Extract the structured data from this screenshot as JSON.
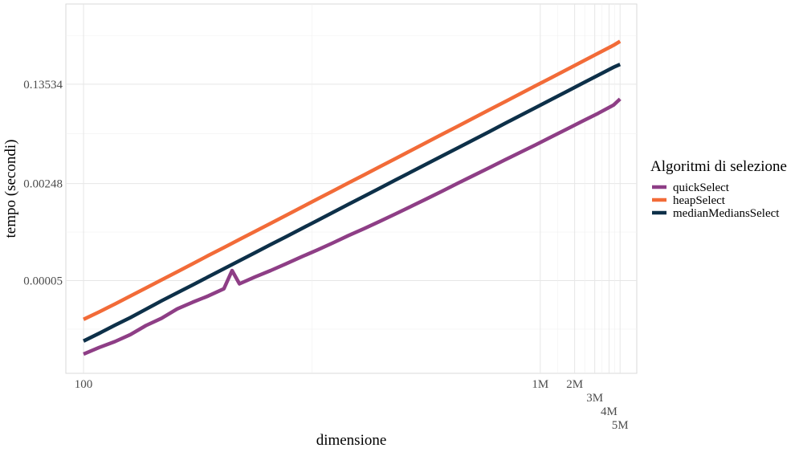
{
  "chart_data": {
    "type": "line",
    "title": "",
    "xlabel": "dimensione",
    "ylabel": "tempo (secondi)",
    "x_scale": "log",
    "y_scale": "log",
    "x_ticks": [
      {
        "value": 100,
        "label": "100"
      },
      {
        "value": 1000000,
        "label": "1M"
      },
      {
        "value": 2000000,
        "label": "2M"
      },
      {
        "value": 3000000,
        "label": "3M"
      },
      {
        "value": 4000000,
        "label": "4M"
      },
      {
        "value": 5000000,
        "label": "5M"
      }
    ],
    "y_ticks": [
      {
        "value": 5e-05,
        "label": "0.00005"
      },
      {
        "value": 0.00248,
        "label": "0.00248"
      },
      {
        "value": 0.13534,
        "label": "0.13534"
      }
    ],
    "xlim": [
      70,
      7000000
    ],
    "ylim": [
      1.2e-06,
      3.4
    ],
    "grid": true,
    "legend": {
      "title": "Algoritmi di selezione",
      "position": "right"
    },
    "series": [
      {
        "name": "quickSelect",
        "color": "#8e3e86",
        "x": [
          100,
          137,
          188,
          257,
          352,
          482,
          660,
          904,
          1238,
          1695,
          2000,
          2321,
          3178,
          4352,
          5960,
          8162,
          11178,
          15307,
          20962,
          28707,
          39313,
          53837,
          73727,
          100966,
          138268,
          189351,
          259308,
          355108,
          486301,
          665962,
          911998,
          1248947,
          1710377,
          2342280,
          3207645,
          4392701,
          5000000
        ],
        "y": [
          2.6e-06,
          3.4e-06,
          4.3e-06,
          5.7e-06,
          8.2e-06,
          1.1e-05,
          1.6e-05,
          2.1e-05,
          2.7e-05,
          3.6e-05,
          7.5e-05,
          4.4e-05,
          5.8e-05,
          7.5e-05,
          9.9e-05,
          0.000131,
          0.000172,
          0.000228,
          0.000307,
          0.000406,
          0.000542,
          0.000731,
          0.000989,
          0.00134,
          0.00183,
          0.00252,
          0.00342,
          0.00466,
          0.00637,
          0.00867,
          0.0118,
          0.0162,
          0.0222,
          0.0305,
          0.0418,
          0.0584,
          0.0748
        ]
      },
      {
        "name": "heapSelect",
        "color": "#f26b38",
        "x": [
          100,
          137,
          188,
          257,
          352,
          482,
          660,
          904,
          1238,
          1695,
          2321,
          3178,
          4352,
          5960,
          8162,
          11178,
          15307,
          20962,
          28707,
          39313,
          53837,
          73727,
          100966,
          138268,
          189351,
          259308,
          355108,
          486301,
          665962,
          911998,
          1248947,
          1710377,
          2342280,
          3207645,
          4392701,
          5000000
        ],
        "y": [
          1.05e-05,
          1.42e-05,
          1.95e-05,
          2.68e-05,
          3.72e-05,
          5.15e-05,
          7.12e-05,
          9.85e-05,
          0.000137,
          0.000189,
          0.000262,
          0.000362,
          0.000501,
          0.000694,
          0.000962,
          0.00133,
          0.00184,
          0.00255,
          0.00353,
          0.00489,
          0.00677,
          0.00937,
          0.013,
          0.018,
          0.0249,
          0.0345,
          0.0478,
          0.0662,
          0.0917,
          0.127,
          0.176,
          0.244,
          0.338,
          0.468,
          0.648,
          0.76
        ]
      },
      {
        "name": "medianMediansSelect",
        "color": "#0d3049",
        "x": [
          100,
          137,
          188,
          257,
          352,
          482,
          660,
          904,
          1238,
          1695,
          2321,
          3178,
          4352,
          5960,
          8162,
          11178,
          15307,
          20962,
          28707,
          39313,
          53837,
          73727,
          100966,
          138268,
          189351,
          259308,
          355108,
          486301,
          665962,
          911998,
          1248947,
          1710377,
          2342280,
          3207645,
          4392701,
          5000000
        ],
        "y": [
          4.4e-06,
          6e-06,
          8.3e-06,
          1.13e-05,
          1.58e-05,
          2.22e-05,
          3.05e-05,
          4.2e-05,
          5.82e-05,
          8.05e-05,
          0.000111,
          0.000154,
          0.000213,
          0.000294,
          0.000407,
          0.000563,
          0.000779,
          0.00108,
          0.00149,
          0.00206,
          0.00285,
          0.00394,
          0.00545,
          0.00754,
          0.0104,
          0.0144,
          0.0199,
          0.0276,
          0.0382,
          0.0528,
          0.0731,
          0.101,
          0.14,
          0.194,
          0.268,
          0.3
        ]
      }
    ]
  }
}
